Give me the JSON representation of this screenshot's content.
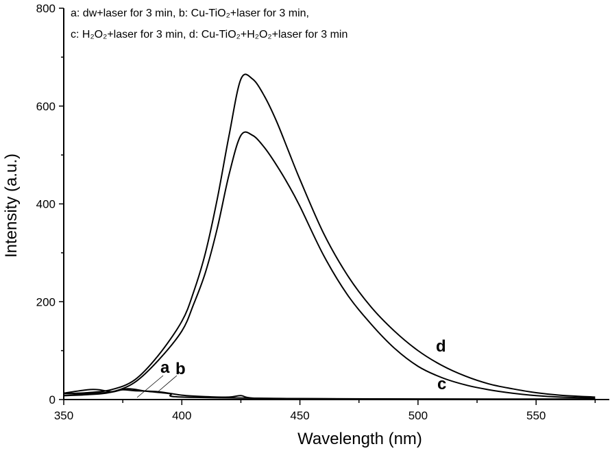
{
  "chart_data": {
    "type": "line",
    "title": "",
    "xlabel": "Wavelength (nm)",
    "ylabel": "Intensity (a.u.)",
    "xlim": [
      350,
      581
    ],
    "ylim": [
      0,
      800
    ],
    "xticks": [
      350,
      400,
      450,
      500,
      550
    ],
    "yticks": [
      0,
      200,
      400,
      600,
      800
    ],
    "grid": false,
    "legend_lines": [
      "a: dw+laser for 3 min, b: Cu-TiO₂+laser for 3 min,",
      "c: H₂O₂+laser for 3 min,  d: Cu-TiO₂+H₂O₂+laser for 3 min"
    ],
    "legend_placement": "top-left",
    "series": [
      {
        "name": "a",
        "x": [
          350,
          360,
          365,
          370,
          375,
          380,
          390,
          400,
          410,
          420,
          425,
          430,
          450,
          500,
          575
        ],
        "y": [
          13,
          20,
          20,
          16,
          20,
          18,
          16,
          9,
          6,
          5,
          8,
          3,
          2,
          1,
          1
        ]
      },
      {
        "name": "b",
        "x": [
          350,
          360,
          370,
          377,
          385,
          395,
          400,
          450,
          500,
          575
        ],
        "y": [
          8,
          12,
          15,
          22,
          17,
          12,
          5,
          2,
          1,
          1
        ]
      },
      {
        "name": "c",
        "x": [
          350,
          360,
          370,
          380,
          390,
          400,
          405,
          410,
          415,
          420,
          425,
          430,
          435,
          440,
          445,
          450,
          460,
          470,
          480,
          490,
          500,
          510,
          520,
          530,
          540,
          550,
          560,
          575
        ],
        "y": [
          8,
          10,
          15,
          35,
          80,
          140,
          195,
          260,
          350,
          460,
          540,
          540,
          515,
          480,
          440,
          395,
          295,
          215,
          155,
          105,
          68,
          45,
          30,
          20,
          13,
          8,
          5,
          3
        ]
      },
      {
        "name": "d",
        "x": [
          350,
          360,
          370,
          380,
          390,
          400,
          405,
          410,
          415,
          420,
          425,
          430,
          435,
          440,
          445,
          450,
          460,
          470,
          480,
          490,
          500,
          510,
          520,
          530,
          540,
          550,
          560,
          575
        ],
        "y": [
          12,
          14,
          20,
          40,
          90,
          160,
          220,
          300,
          410,
          540,
          655,
          655,
          620,
          570,
          510,
          450,
          340,
          255,
          190,
          140,
          100,
          70,
          48,
          32,
          22,
          14,
          9,
          5
        ]
      }
    ]
  }
}
